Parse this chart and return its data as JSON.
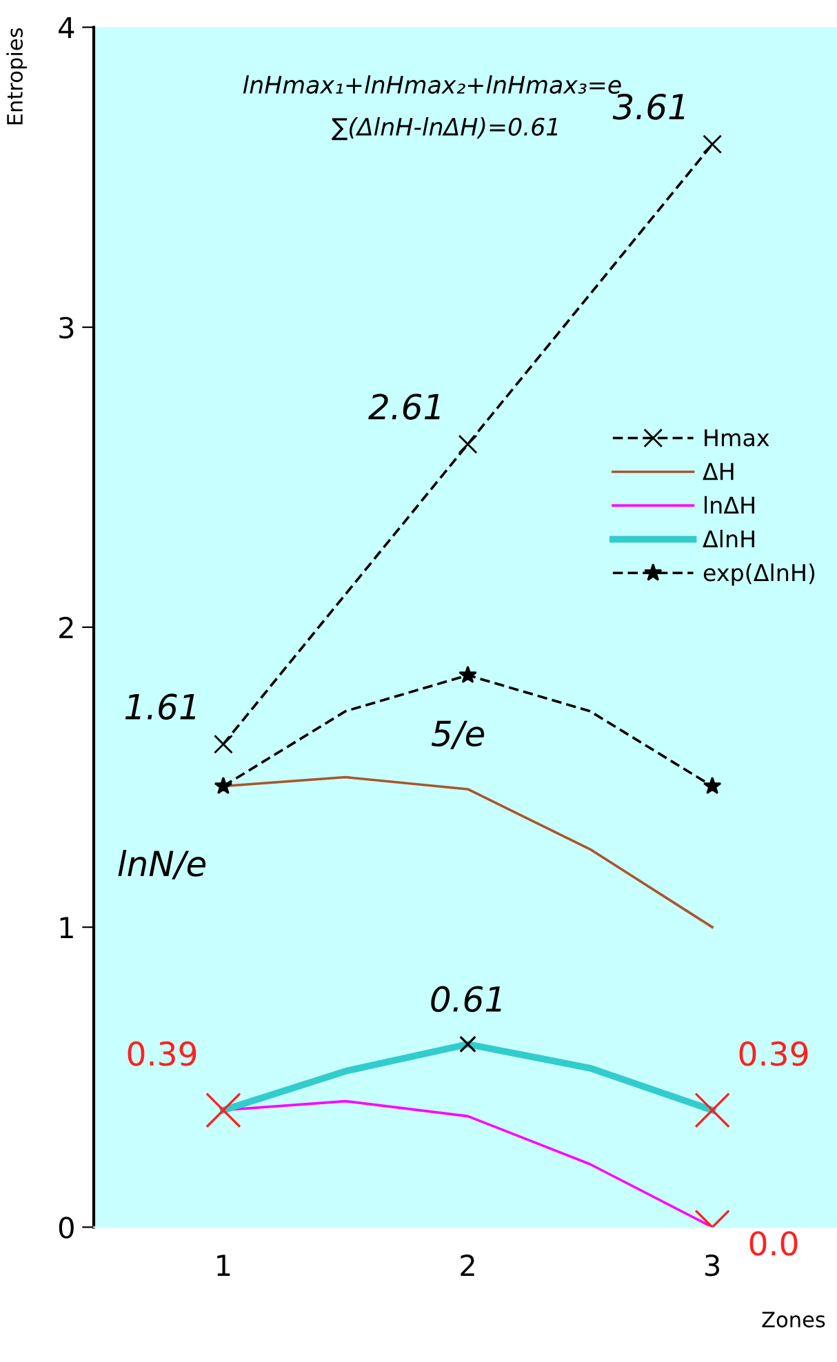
{
  "chart_data": {
    "type": "line",
    "xlabel": "Zones",
    "ylabel": "Entropies",
    "xlim": [
      0.47,
      3.51
    ],
    "xticks": [
      1,
      2,
      3
    ],
    "ylim": [
      0,
      4
    ],
    "yticks": [
      0,
      1,
      2,
      3,
      4
    ],
    "grid": false,
    "legend": "right",
    "series": [
      {
        "name": "Hmax",
        "color": "#000000",
        "x": [
          1,
          2,
          3
        ],
        "values": [
          1.61,
          2.61,
          3.61
        ],
        "line_style": "dashed",
        "marker": "cross",
        "value_labels": [
          "1.61",
          "2.61",
          "3.61"
        ]
      },
      {
        "name": "ΔH",
        "color": "#a8562a",
        "x": [
          1,
          1.5,
          2,
          2.5,
          3
        ],
        "values": [
          1.47,
          1.5,
          1.46,
          1.26,
          1.0
        ],
        "line_style": "solid",
        "marker": "none"
      },
      {
        "name": "lnΔH",
        "color": "#ff00ff",
        "x": [
          1,
          1.5,
          2,
          2.5,
          3
        ],
        "values": [
          0.39,
          0.42,
          0.37,
          0.21,
          0.0
        ],
        "line_style": "solid",
        "marker": "none"
      },
      {
        "name": "ΔlnH",
        "color": "#33cccc",
        "x": [
          1,
          1.5,
          2,
          2.5,
          3
        ],
        "values": [
          0.39,
          0.52,
          0.61,
          0.53,
          0.39
        ],
        "line_style": "solid",
        "marker": "none"
      },
      {
        "name": "exp(ΔlnH)",
        "color": "#000000",
        "x": [
          1,
          1.5,
          2,
          2.5,
          3
        ],
        "values": [
          1.47,
          1.72,
          1.84,
          1.72,
          1.47
        ],
        "line_style": "dashed",
        "marker": "star"
      },
      {
        "type": "scatter",
        "color": "#000000",
        "x": [
          2
        ],
        "values": [
          0.61
        ],
        "marker": "cross",
        "value_labels": [
          "0.61"
        ]
      },
      {
        "type": "scatter",
        "color": "#ff2020",
        "x": [
          1,
          3,
          3
        ],
        "values": [
          0.39,
          0.39,
          0.0
        ],
        "marker": "cross",
        "value_labels": [
          "0.39",
          "0.39",
          "0.0"
        ]
      }
    ],
    "annotations": [
      "lnHmax₁+lnHmax₂+lnHmax₃=e",
      "∑(ΔlnH-lnΔH)=0.61",
      {
        "text": "5/e",
        "x": 2,
        "y": 1.84
      },
      {
        "text": "lnN/e",
        "x": 1,
        "y": 1.47
      }
    ]
  }
}
